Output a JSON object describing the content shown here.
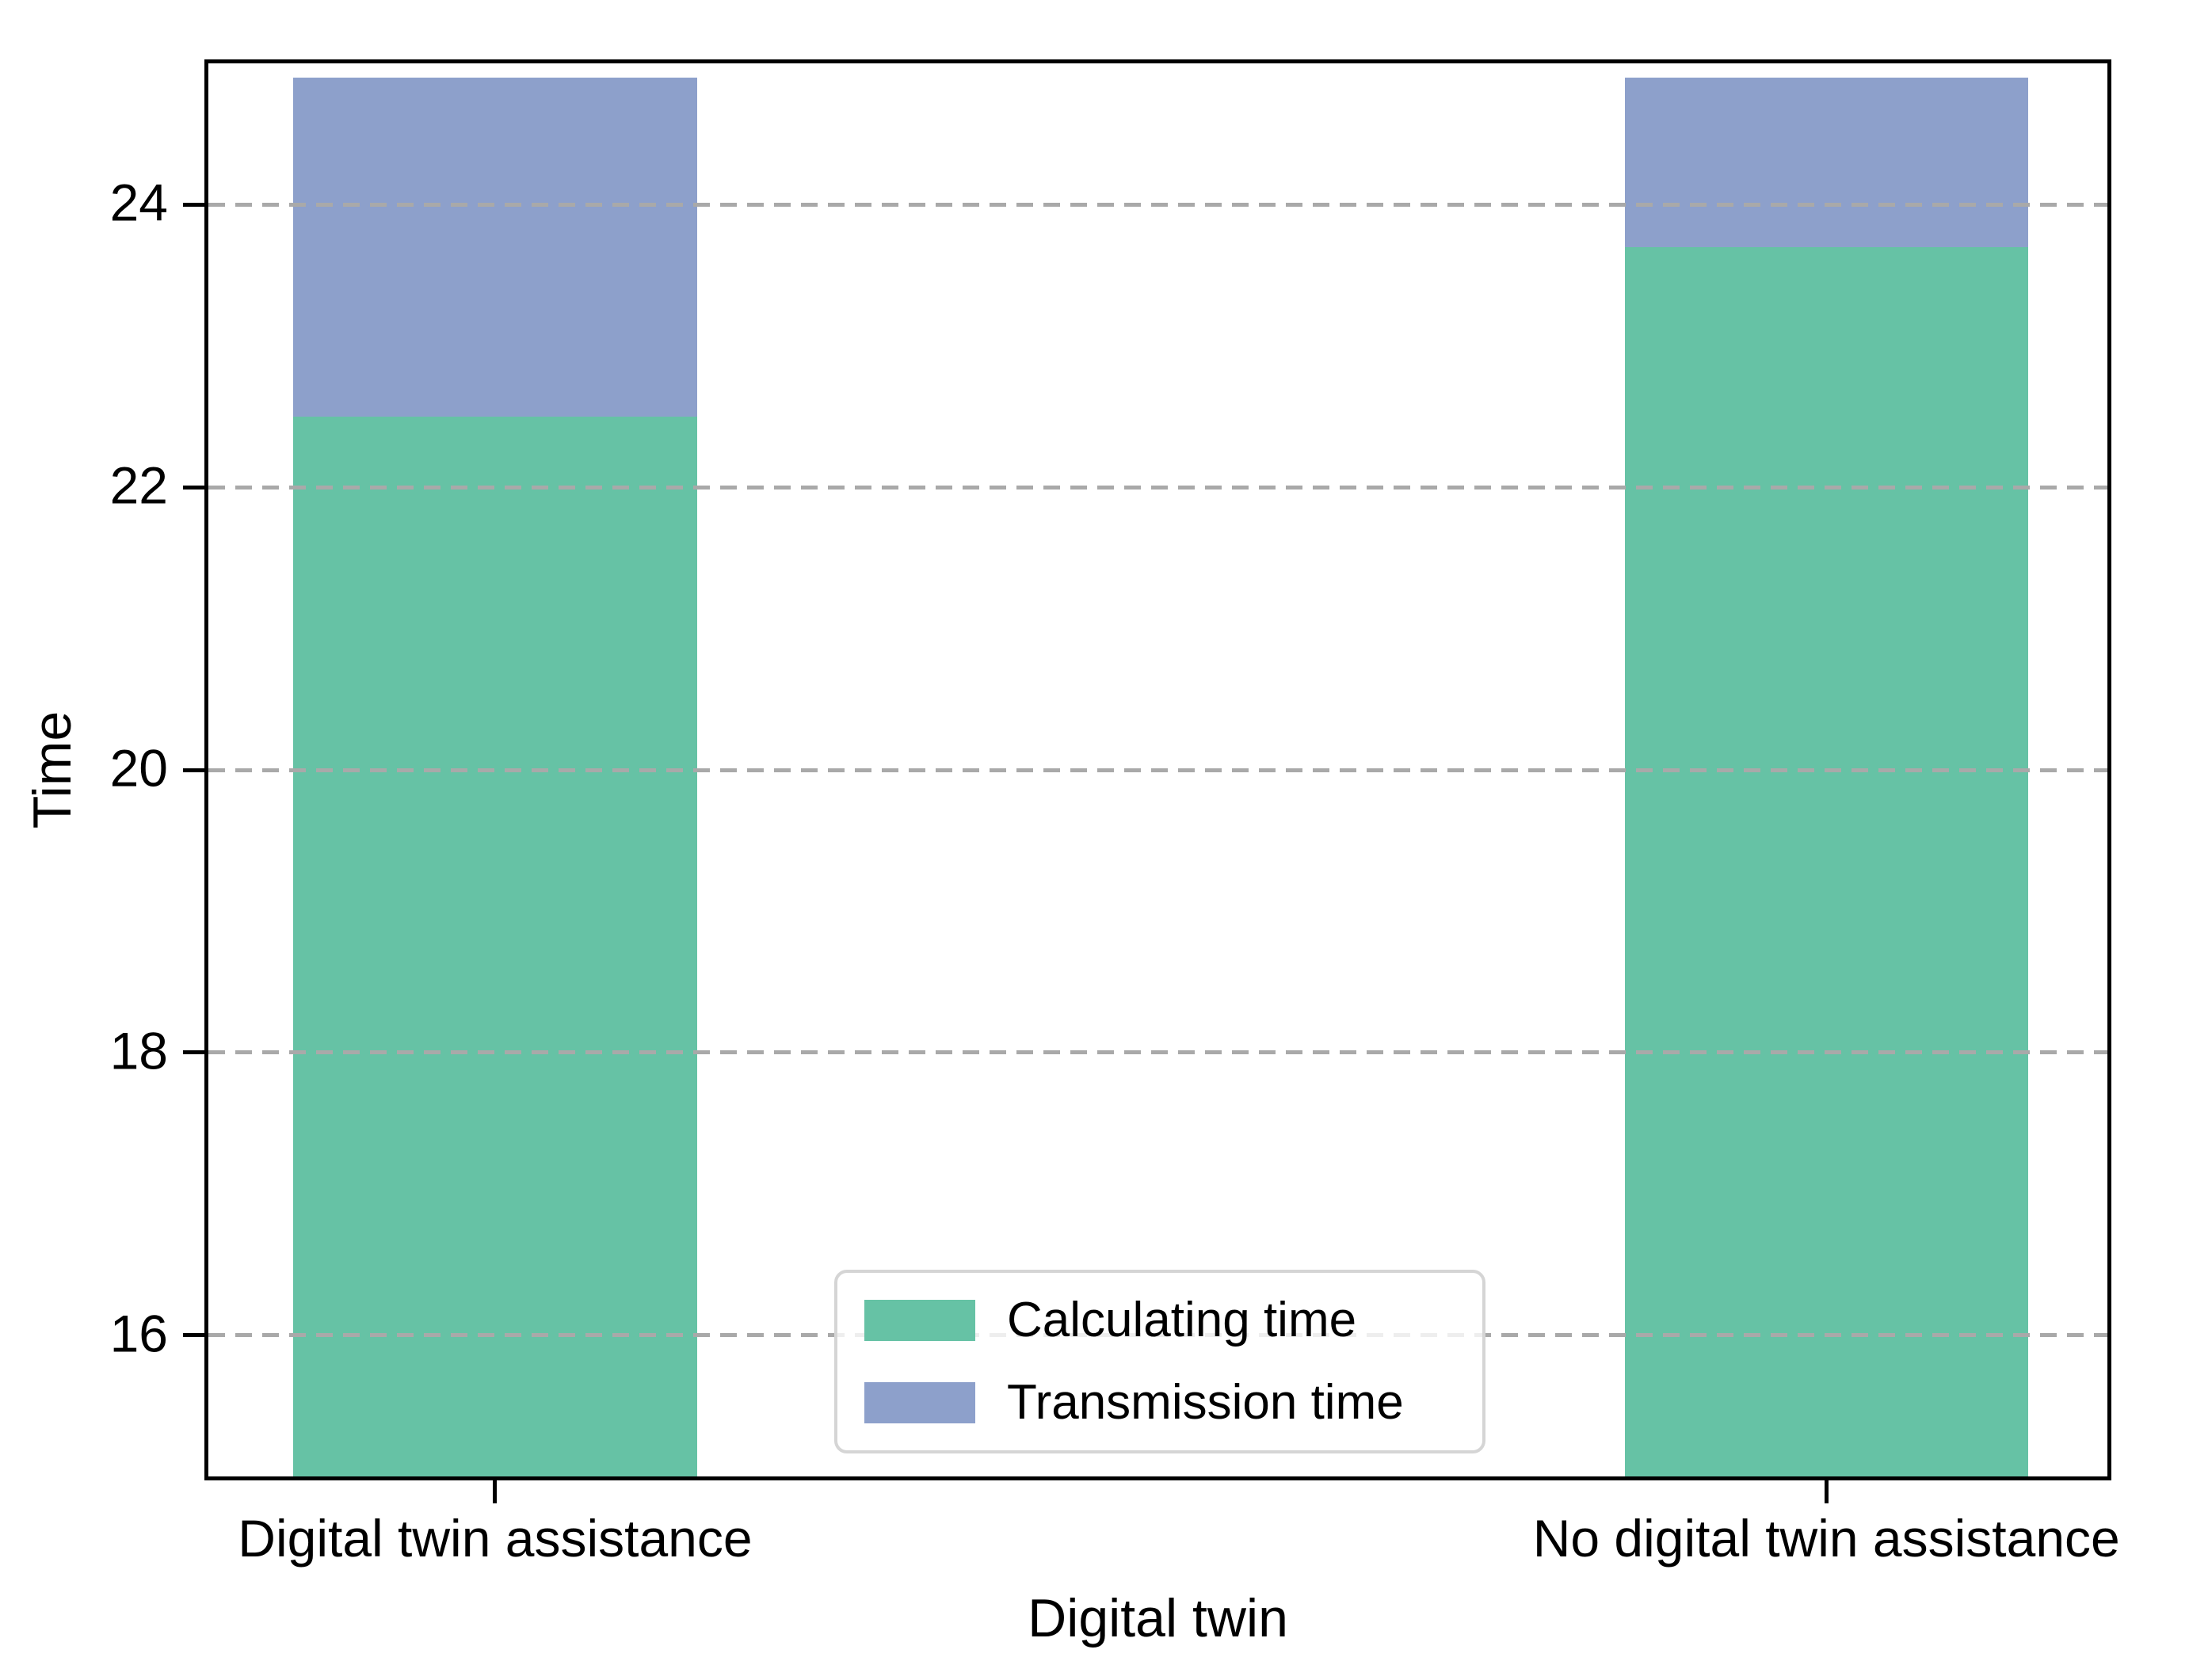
{
  "chart_data": {
    "type": "bar",
    "stacked": true,
    "title": "",
    "xlabel": "Digital twin",
    "ylabel": "Time",
    "categories": [
      "Digital twin assistance",
      "No digital twin assistance"
    ],
    "series": [
      {
        "name": "Calculating time",
        "color": "#66C2A5",
        "values": [
          22.5,
          23.7
        ]
      },
      {
        "name": "Transmission time",
        "color": "#8DA0CB",
        "values": [
          2.4,
          1.2
        ]
      }
    ],
    "ylim": [
      15,
      25
    ],
    "yticks": [
      16,
      18,
      20,
      22,
      24
    ],
    "ytick_labels": [
      "16",
      "18",
      "20",
      "22",
      "24"
    ],
    "grid": {
      "axis": "y",
      "style": "dashed",
      "color": "#A9A9A9",
      "above_bars": true
    },
    "legend": {
      "position": "lower center",
      "entries": [
        "Calculating time",
        "Transmission time"
      ]
    },
    "layout": {
      "bar_centers_frac": [
        0.151,
        0.852
      ],
      "bar_width_frac": 0.2125
    }
  },
  "colors": {
    "spine": "#000000",
    "grid": "#A9A9A9",
    "legend_border": "#D5D5D5",
    "background": "#FFFFFF"
  }
}
